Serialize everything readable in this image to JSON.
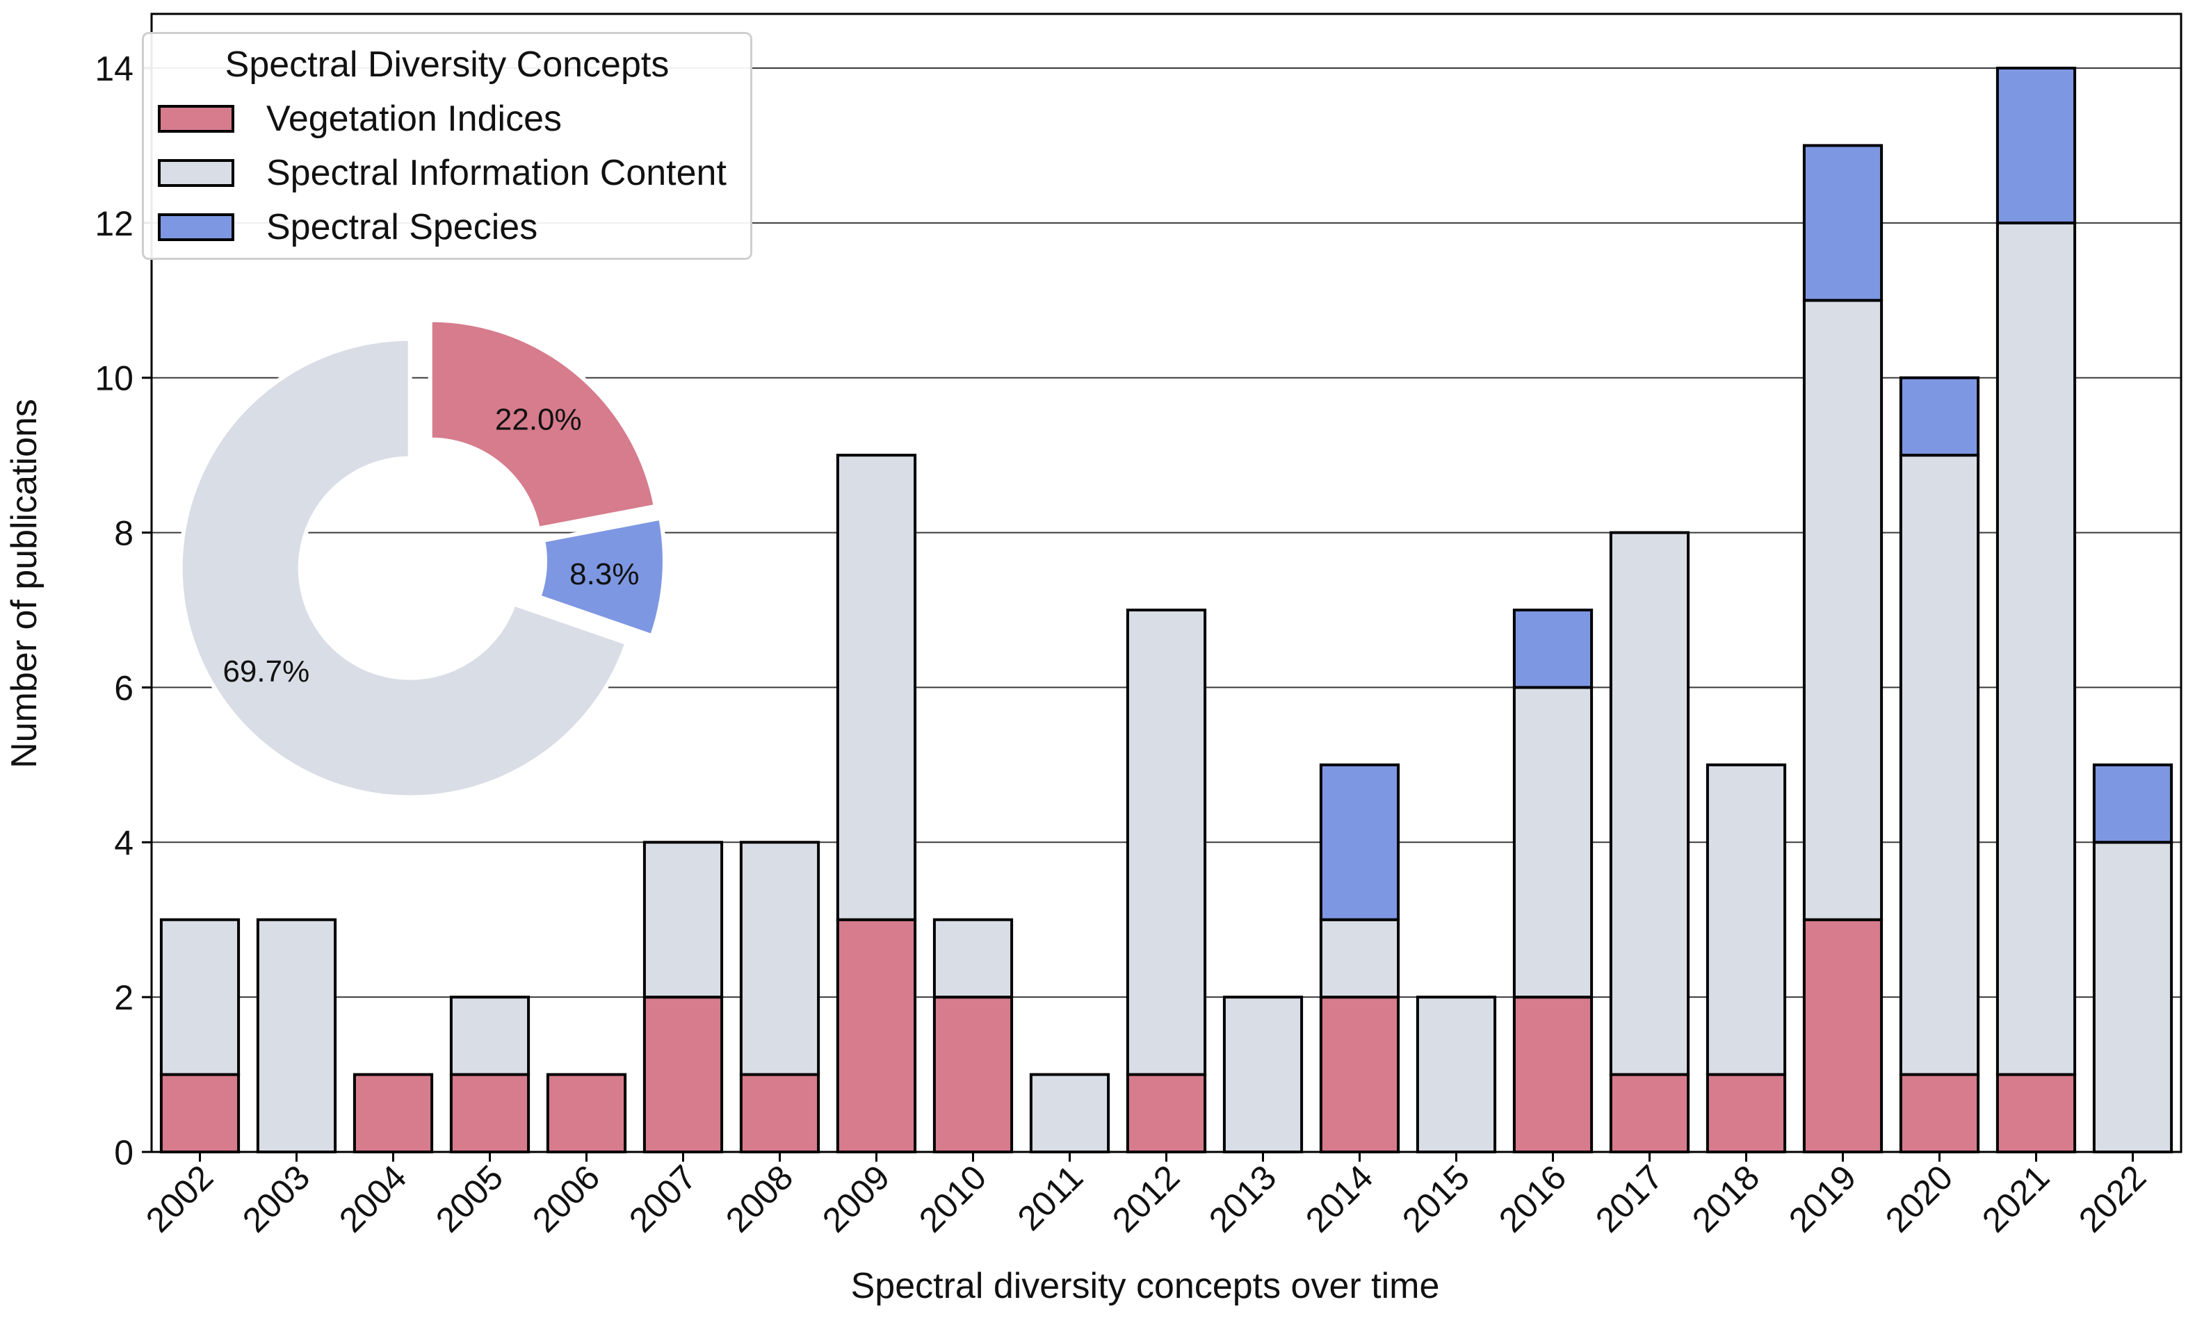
{
  "chart_data": [
    {
      "type": "bar",
      "stacked": true,
      "categories": [
        "2002",
        "2003",
        "2004",
        "2005",
        "2006",
        "2007",
        "2008",
        "2009",
        "2010",
        "2011",
        "2012",
        "2013",
        "2014",
        "2015",
        "2016",
        "2017",
        "2018",
        "2019",
        "2020",
        "2021",
        "2022"
      ],
      "series": [
        {
          "name": "Vegetation Indices",
          "color": "#d67c8c",
          "values": [
            1,
            0,
            1,
            1,
            1,
            2,
            1,
            3,
            2,
            0,
            1,
            0,
            2,
            0,
            2,
            1,
            1,
            3,
            1,
            1,
            0
          ]
        },
        {
          "name": "Spectral Information Content",
          "color": "#d9dde6",
          "values": [
            2,
            3,
            0,
            1,
            0,
            2,
            3,
            6,
            1,
            1,
            6,
            2,
            1,
            2,
            4,
            7,
            4,
            8,
            8,
            11,
            4
          ]
        },
        {
          "name": "Spectral Species",
          "color": "#7e97e2",
          "values": [
            0,
            0,
            0,
            0,
            0,
            0,
            0,
            0,
            0,
            0,
            0,
            0,
            2,
            0,
            1,
            0,
            0,
            2,
            1,
            2,
            1
          ]
        }
      ],
      "title": "",
      "xlabel": "Spectral diversity concepts over time",
      "ylabel": "Number of publications",
      "ylim": [
        0,
        14.7
      ],
      "yticks": [
        0,
        2,
        4,
        6,
        8,
        10,
        12,
        14
      ],
      "grid": "horizontal",
      "legend": {
        "title": "Spectral Diversity Concepts",
        "placement": "top-left"
      }
    },
    {
      "type": "pie",
      "style": "donut",
      "slices": [
        {
          "name": "Vegetation Indices",
          "value": 22.0,
          "label": "22.0%",
          "color": "#d67c8c"
        },
        {
          "name": "Spectral Species",
          "value": 8.3,
          "label": "8.3%",
          "color": "#7e97e2"
        },
        {
          "name": "Spectral Information Content",
          "value": 69.7,
          "label": "69.7%",
          "color": "#d9dde6"
        }
      ],
      "placement": "inset top-left"
    }
  ]
}
